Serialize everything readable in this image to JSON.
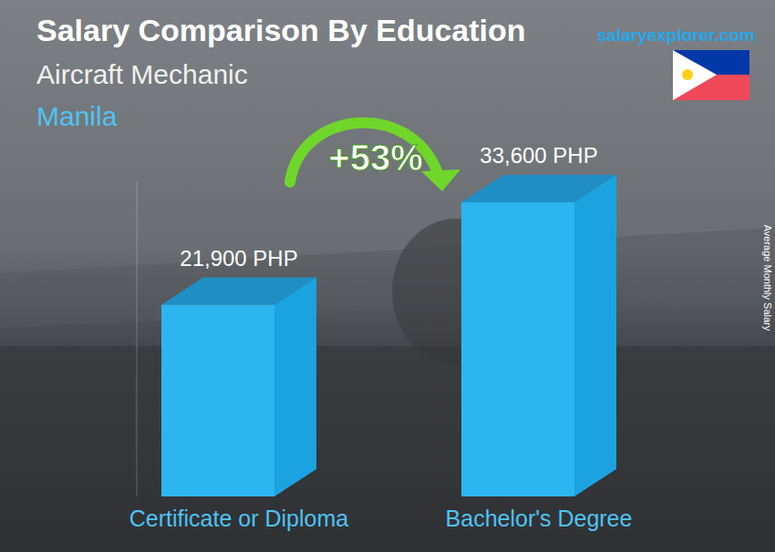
{
  "chart_data": {
    "type": "bar",
    "title": "Salary Comparison By Education",
    "subtitle": "Aircraft Mechanic",
    "location": "Manila",
    "source": "salaryexplorer.com",
    "annotation": "+53%",
    "y_label": "Average Monthly Salary",
    "categories": [
      "Certificate or Diploma",
      "Bachelor's Degree"
    ],
    "values": [
      21900,
      33600
    ],
    "value_labels": [
      "21,900 PHP",
      "33,600 PHP"
    ],
    "color": "#2bb6f0",
    "ylim": [
      0,
      36000
    ],
    "tick_labels": false,
    "data_labels": true
  }
}
